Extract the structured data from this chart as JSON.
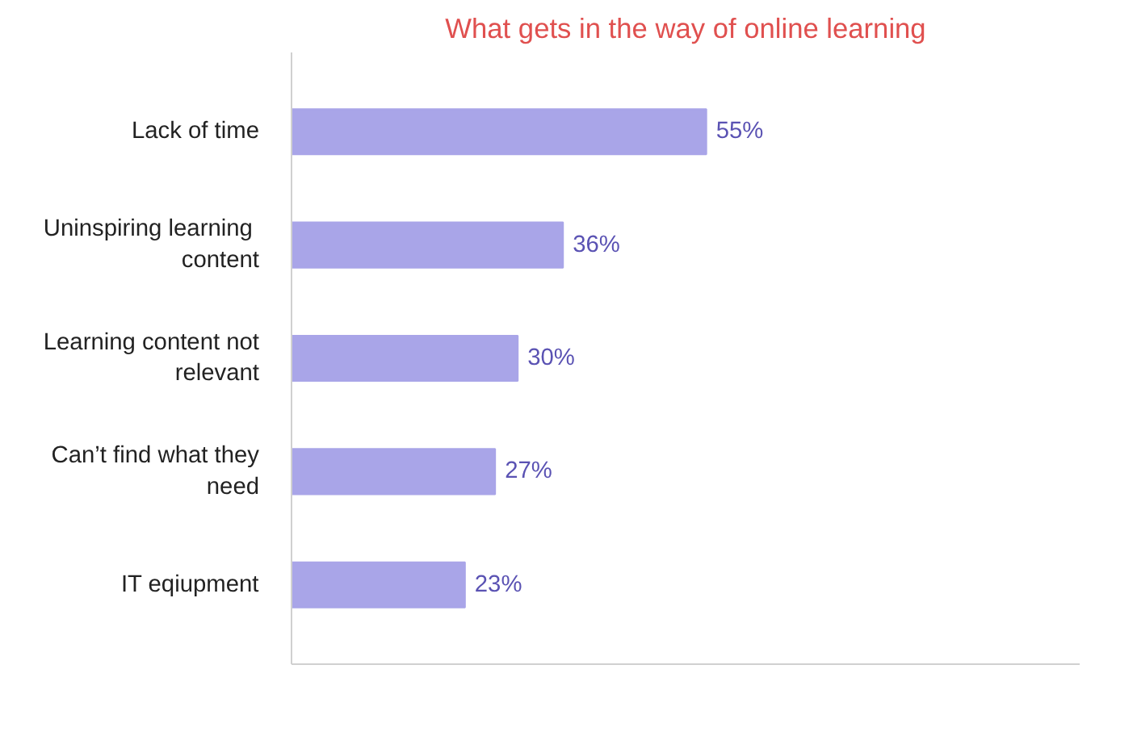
{
  "chart_data": {
    "type": "bar",
    "orientation": "horizontal",
    "title": "What gets in the way of online learning",
    "categories": [
      "Lack of time",
      "Uninspiring  learning content",
      "Learning content not relevant",
      "Can’t find what they need",
      "IT eqiupment"
    ],
    "values": [
      55,
      36,
      30,
      27,
      23
    ],
    "value_labels": [
      "55%",
      "36%",
      "30%",
      "27%",
      "23%"
    ],
    "color": "#a9a5e8",
    "grid": false
  }
}
